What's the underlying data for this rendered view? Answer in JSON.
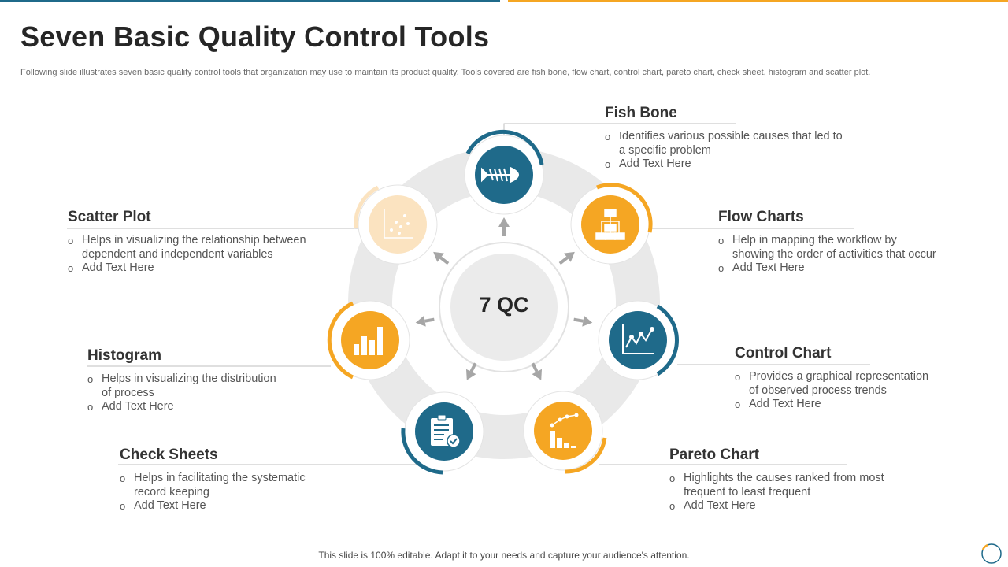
{
  "slide": {
    "title": "Seven Basic Quality Control Tools",
    "subtitle": "Following slide illustrates seven basic quality control tools that organization may use to maintain its product quality. Tools covered are fish bone, flow chart, control chart, pareto chart, check sheet, histogram and scatter plot.",
    "footer": "This slide is 100% editable. Adapt it to your needs and capture your audience's attention."
  },
  "center": {
    "label": "7 QC"
  },
  "colors": {
    "blue": "#1f6a8a",
    "orange": "#f5a623",
    "light_orange": "#fbe3c0",
    "gray": "#e6e6e6"
  },
  "tools": {
    "fish_bone": {
      "title": "Fish Bone",
      "bullets": [
        "Identifies various possible causes that led to",
        "a specific problem",
        "Add Text Here"
      ],
      "icon": "fish-bone-icon"
    },
    "flow_charts": {
      "title": "Flow Charts",
      "bullets": [
        "Help in mapping the workflow by",
        "showing the order of activities that occur",
        "Add Text Here"
      ],
      "icon": "flow-chart-icon"
    },
    "control_chart": {
      "title": "Control Chart",
      "bullets": [
        "Provides a graphical representation",
        "of observed process trends",
        "Add Text Here"
      ],
      "icon": "control-chart-icon"
    },
    "pareto_chart": {
      "title": "Pareto Chart",
      "bullets": [
        "Highlights the causes ranked from most",
        "frequent to least frequent",
        "Add Text Here"
      ],
      "icon": "pareto-chart-icon"
    },
    "check_sheets": {
      "title": "Check Sheets",
      "bullets": [
        "Helps in facilitating the systematic",
        "record keeping",
        "Add Text Here"
      ],
      "icon": "clipboard-check-icon"
    },
    "histogram": {
      "title": "Histogram",
      "bullets": [
        "Helps in visualizing the distribution",
        "of process",
        "Add Text Here"
      ],
      "icon": "histogram-icon"
    },
    "scatter_plot": {
      "title": "Scatter Plot",
      "bullets": [
        "Helps in visualizing the relationship between",
        "dependent and independent variables",
        "Add Text Here"
      ],
      "icon": "scatter-plot-icon"
    }
  }
}
